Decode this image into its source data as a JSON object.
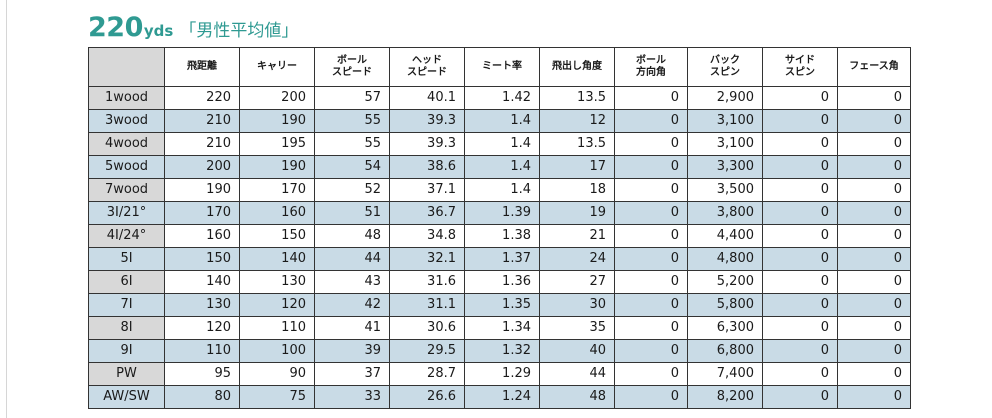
{
  "title": {
    "distance": "220",
    "unit": "yds",
    "subtitle": "「男性平均値」"
  },
  "table": {
    "headers": [
      [
        ""
      ],
      [
        "飛距離"
      ],
      [
        "キャリー"
      ],
      [
        "ボール",
        "スピード"
      ],
      [
        "ヘッド",
        "スピード"
      ],
      [
        "ミート率"
      ],
      [
        "飛出し角度"
      ],
      [
        "ボール",
        "方向角"
      ],
      [
        "バック",
        "スピン"
      ],
      [
        "サイド",
        "スピン"
      ],
      [
        "フェース角"
      ]
    ],
    "rows": [
      [
        "1wood",
        "220",
        "200",
        "57",
        "40.1",
        "1.42",
        "13.5",
        "0",
        "2,900",
        "0",
        "0"
      ],
      [
        "3wood",
        "210",
        "190",
        "55",
        "39.3",
        "1.4",
        "12",
        "0",
        "3,100",
        "0",
        "0"
      ],
      [
        "4wood",
        "210",
        "195",
        "55",
        "39.3",
        "1.4",
        "13.5",
        "0",
        "3,100",
        "0",
        "0"
      ],
      [
        "5wood",
        "200",
        "190",
        "54",
        "38.6",
        "1.4",
        "17",
        "0",
        "3,300",
        "0",
        "0"
      ],
      [
        "7wood",
        "190",
        "170",
        "52",
        "37.1",
        "1.4",
        "18",
        "0",
        "3,500",
        "0",
        "0"
      ],
      [
        "3I/21°",
        "170",
        "160",
        "51",
        "36.7",
        "1.39",
        "19",
        "0",
        "3,800",
        "0",
        "0"
      ],
      [
        "4I/24°",
        "160",
        "150",
        "48",
        "34.8",
        "1.38",
        "21",
        "0",
        "4,400",
        "0",
        "0"
      ],
      [
        "5I",
        "150",
        "140",
        "44",
        "32.1",
        "1.37",
        "24",
        "0",
        "4,800",
        "0",
        "0"
      ],
      [
        "6I",
        "140",
        "130",
        "43",
        "31.6",
        "1.36",
        "27",
        "0",
        "5,200",
        "0",
        "0"
      ],
      [
        "7I",
        "130",
        "120",
        "42",
        "31.1",
        "1.35",
        "30",
        "0",
        "5,800",
        "0",
        "0"
      ],
      [
        "8I",
        "120",
        "110",
        "41",
        "30.6",
        "1.34",
        "35",
        "0",
        "6,300",
        "0",
        "0"
      ],
      [
        "9I",
        "110",
        "100",
        "39",
        "29.5",
        "1.32",
        "40",
        "0",
        "6,800",
        "0",
        "0"
      ],
      [
        "PW",
        "95",
        "90",
        "37",
        "28.7",
        "1.29",
        "44",
        "0",
        "7,400",
        "0",
        "0"
      ],
      [
        "AW/SW",
        "80",
        "75",
        "33",
        "26.6",
        "1.24",
        "48",
        "0",
        "8,200",
        "0",
        "0"
      ]
    ]
  },
  "colors": {
    "title": "#2f9a92",
    "alt_row": "#c9dbe6",
    "label_cell": "#d8d8d8",
    "border": "#333333"
  }
}
